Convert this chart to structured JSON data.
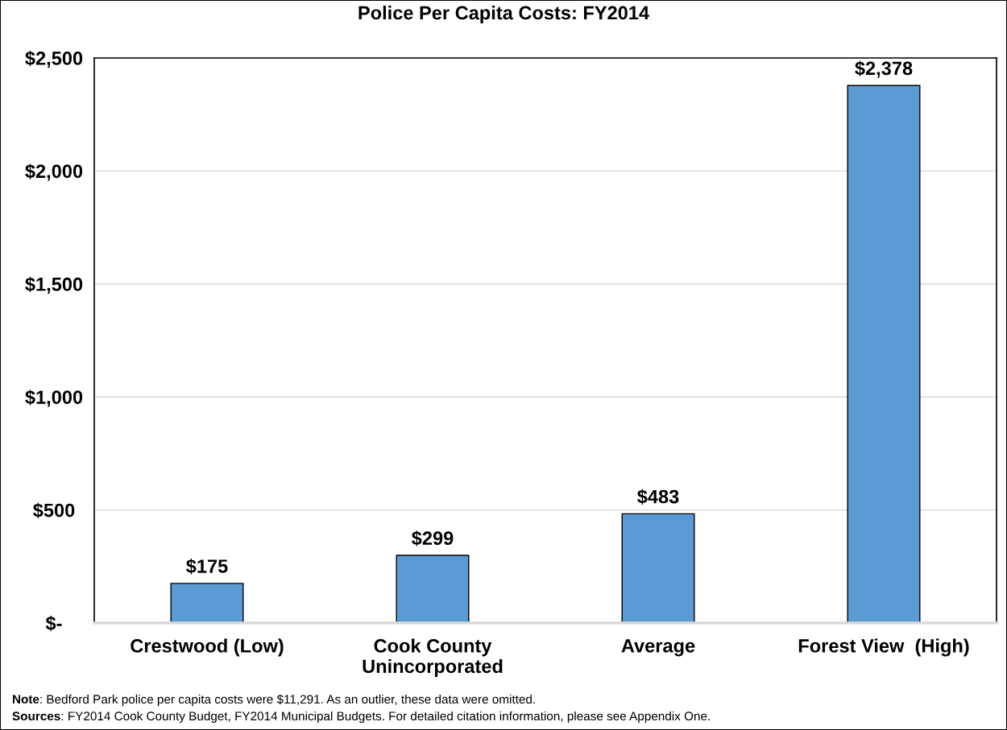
{
  "chart_data": {
    "type": "bar",
    "title": "Police Per Capita Costs: FY2014",
    "categories": [
      "Crestwood (Low)",
      "Cook County\nUnincorporated",
      "Average",
      "Forest View  (High)"
    ],
    "values": [
      175,
      299,
      483,
      2378
    ],
    "color": "#5b9bd5",
    "value_labels": [
      "$175",
      "$299",
      "$483",
      "$2,378"
    ],
    "ylim": [
      0,
      2500
    ],
    "yticks": [
      {
        "value": 0,
        "label": "$-"
      },
      {
        "value": 500,
        "label": "$500"
      },
      {
        "value": 1000,
        "label": "$1,000"
      },
      {
        "value": 1500,
        "label": "$1,500"
      },
      {
        "value": 2000,
        "label": "$2,000"
      },
      {
        "value": 2500,
        "label": "$2,500"
      }
    ],
    "grid": "y",
    "legend": false,
    "annotations": [
      "Note: Bedford Park police per capita costs were $11,291. As an outlier, these data were omitted.",
      "Sources: FY2014 Cook County Budget, FY2014 Municipal Budgets. For detailed citation information, please see Appendix One."
    ]
  }
}
